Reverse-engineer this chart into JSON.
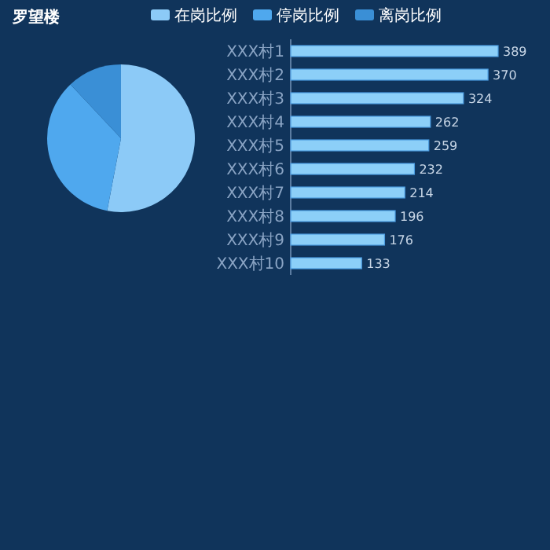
{
  "chart_data": [
    {
      "type": "pie",
      "title": "罗望楼",
      "categories": [
        "在岗比例",
        "停岗比例",
        "离岗比例"
      ],
      "values": [
        53,
        35,
        12
      ],
      "colors": [
        "#8ccaf7",
        "#4fa8ee",
        "#3a8fd6"
      ],
      "legend": "top"
    },
    {
      "type": "bar",
      "orientation": "horizontal",
      "categories": [
        "XXX村1",
        "XXX村2",
        "XXX村3",
        "XXX村4",
        "XXX村5",
        "XXX村6",
        "XXX村7",
        "XXX村8",
        "XXX村9",
        "XXX村10"
      ],
      "values": [
        389,
        370,
        324,
        262,
        259,
        232,
        214,
        196,
        176,
        133
      ],
      "color": "#8ccff8",
      "data_labels": true
    }
  ]
}
